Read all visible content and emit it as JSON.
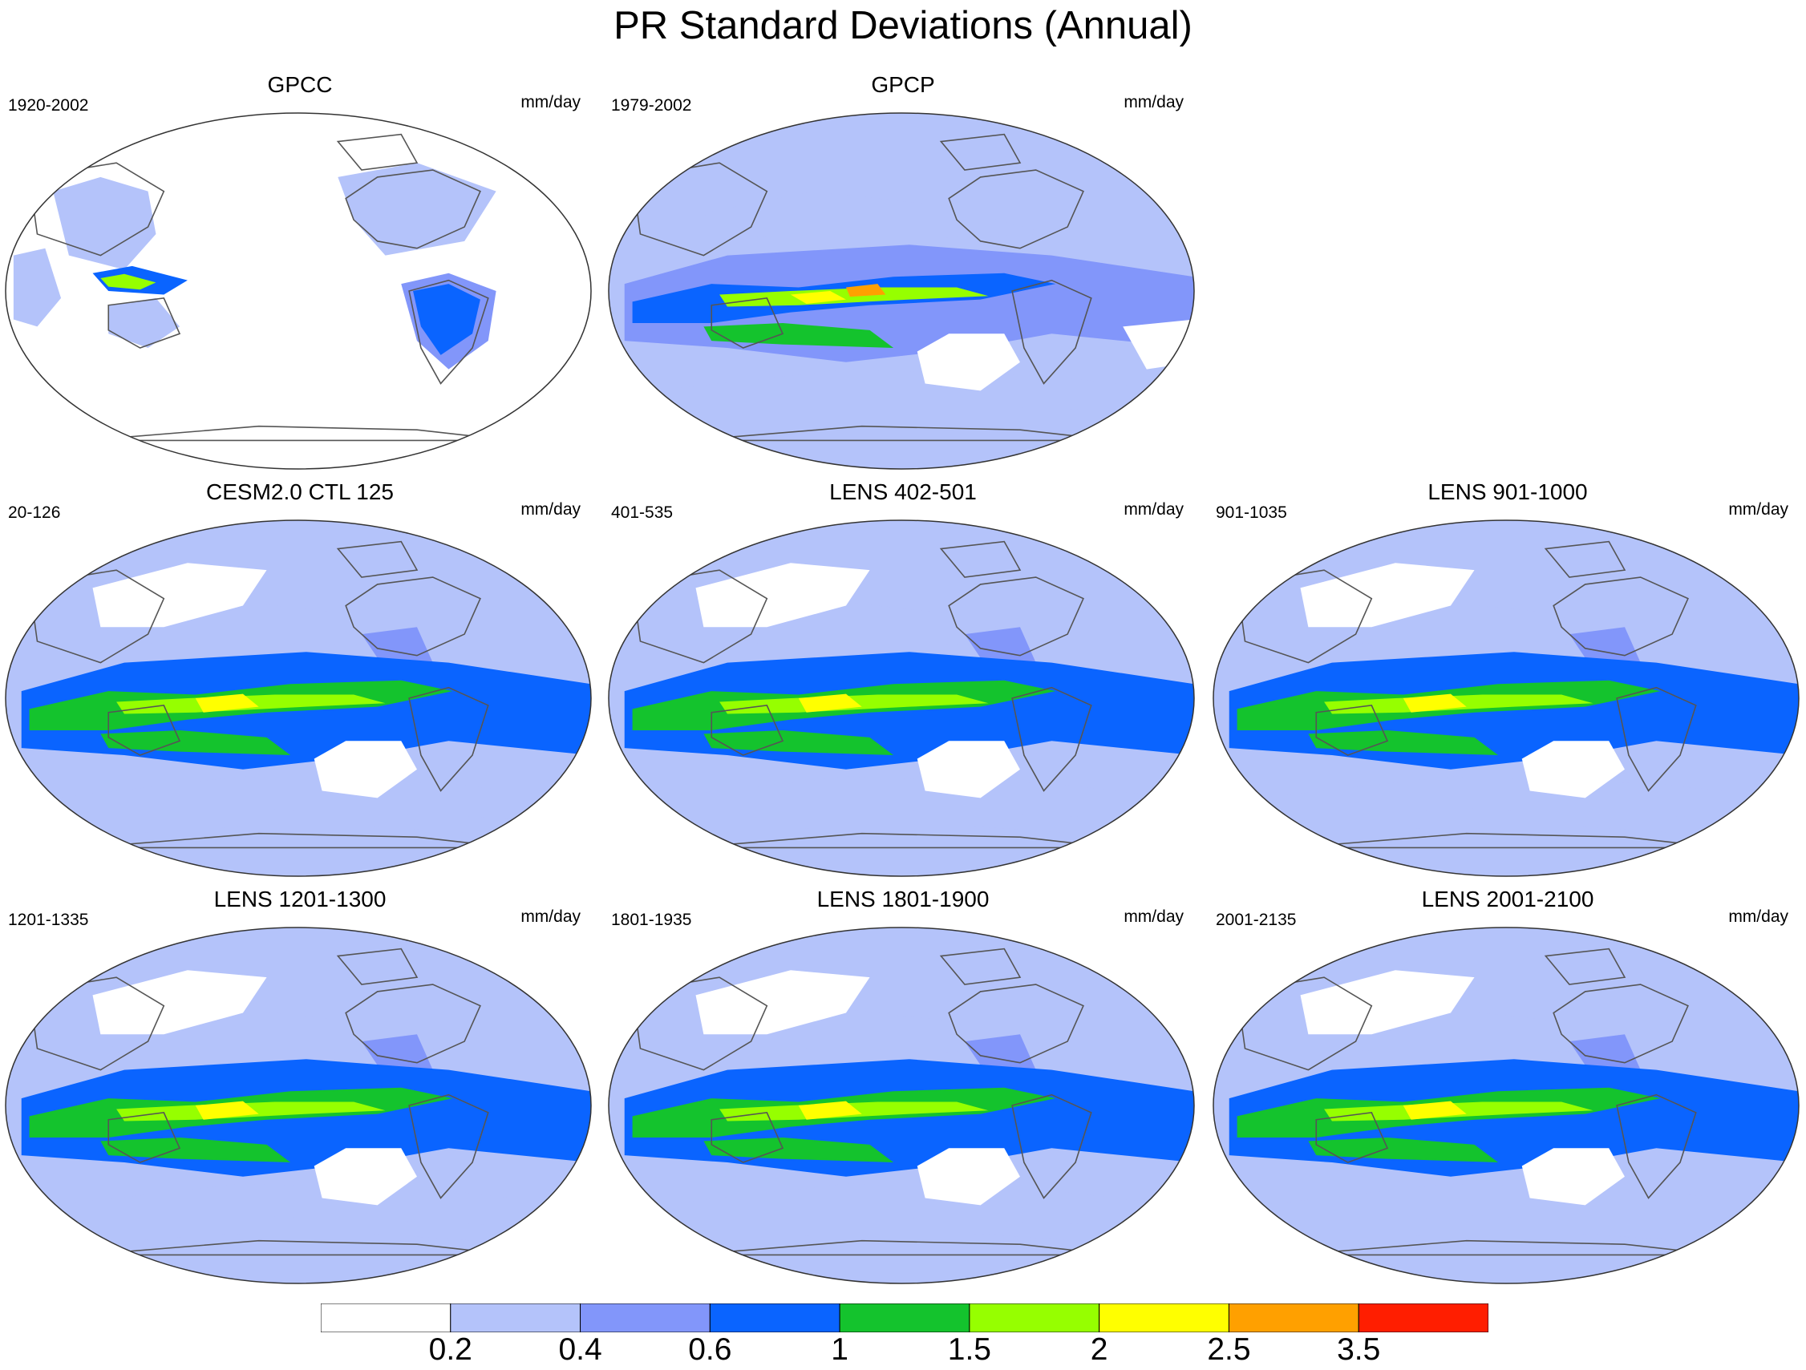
{
  "title": "PR Standard Deviations (Annual)",
  "panels": [
    {
      "title": "GPCC",
      "period": "1920-2002",
      "units": "mm/day",
      "pattern": "land-only"
    },
    {
      "title": "GPCP",
      "period": "1979-2002",
      "units": "mm/day",
      "pattern": "observed"
    },
    {
      "title": "CESM2.0 CTL 125",
      "period": "20-126",
      "units": "mm/day",
      "pattern": "model"
    },
    {
      "title": "LENS 402-501",
      "period": "401-535",
      "units": "mm/day",
      "pattern": "model"
    },
    {
      "title": "LENS 901-1000",
      "period": "901-1035",
      "units": "mm/day",
      "pattern": "model"
    },
    {
      "title": "LENS 1201-1300",
      "period": "1201-1335",
      "units": "mm/day",
      "pattern": "model"
    },
    {
      "title": "LENS 1801-1900",
      "period": "1801-1935",
      "units": "mm/day",
      "pattern": "model"
    },
    {
      "title": "LENS 2001-2100",
      "period": "2001-2135",
      "units": "mm/day",
      "pattern": "model"
    }
  ],
  "colorbar": {
    "labels": [
      "0.2",
      "0.4",
      "0.6",
      "1",
      "1.5",
      "2",
      "2.5",
      "3.5"
    ],
    "colors": [
      "#ffffff",
      "#b4c3fa",
      "#8296fa",
      "#0a64ff",
      "#14c32d",
      "#96ff00",
      "#ffff00",
      "#ffa000",
      "#ff1e00"
    ]
  }
}
